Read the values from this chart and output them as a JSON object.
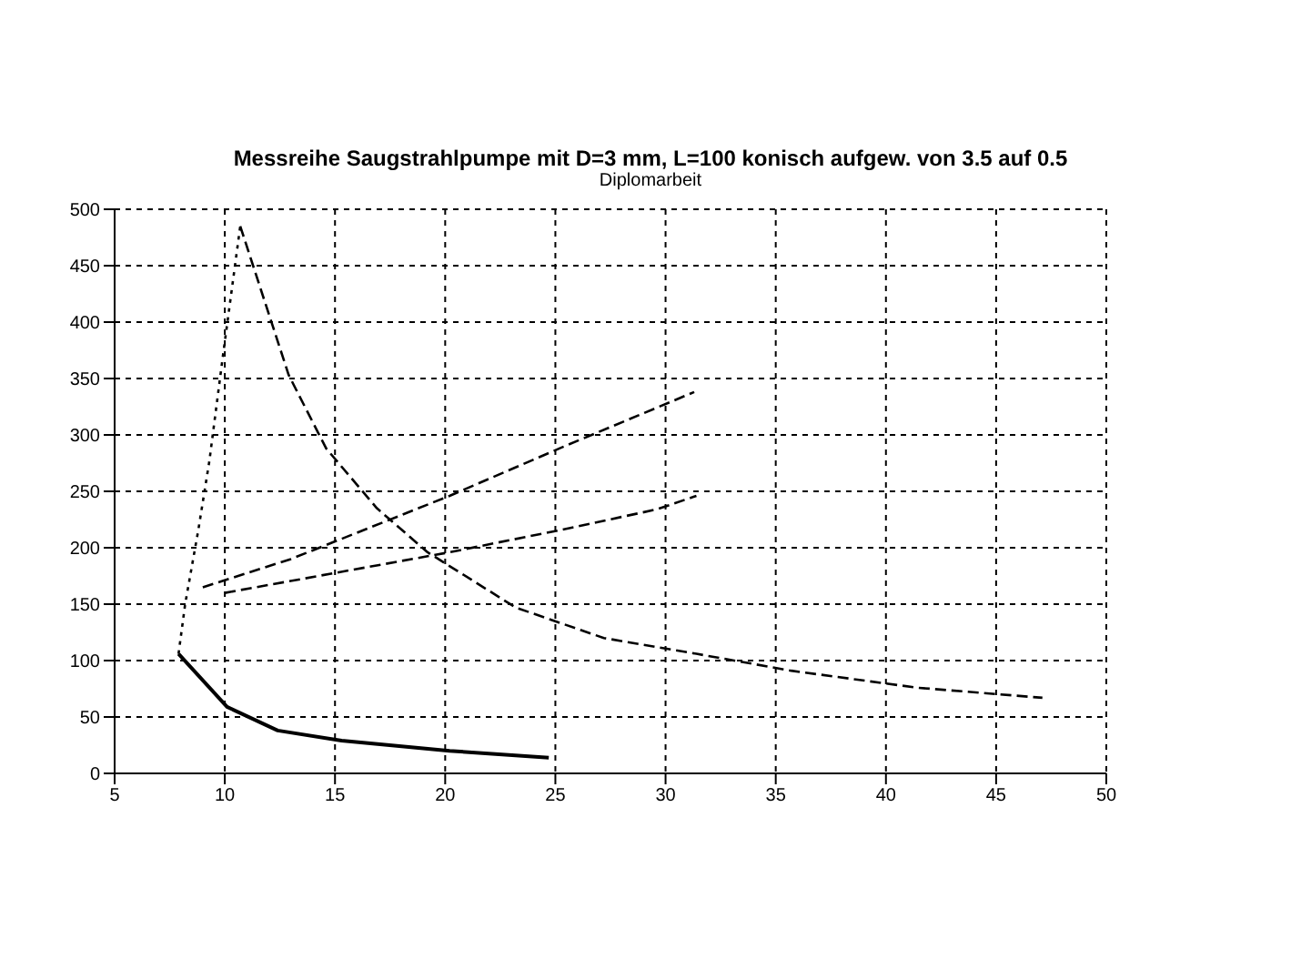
{
  "chart_data": {
    "type": "line",
    "title": "Messreihe Saugstrahlpumpe mit D=3 mm, L=100 konisch aufgew. von 3.5 auf 0.5",
    "subtitle": "Diplomarbeit",
    "xlim": [
      5,
      50
    ],
    "xticks": [
      5,
      10,
      15,
      20,
      25,
      30,
      35,
      40,
      45,
      50
    ],
    "ylim": [
      0,
      500
    ],
    "yticks": [
      0,
      50,
      100,
      150,
      200,
      250,
      300,
      350,
      400,
      450,
      500
    ],
    "grid": true,
    "marker": "none",
    "series": [
      {
        "color": "#000000",
        "line_style": "solid",
        "x": [
          7.9,
          10.1,
          12.4,
          15.3,
          20.2,
          24.7
        ],
        "values": [
          106,
          59,
          38,
          29,
          20,
          14
        ]
      },
      {
        "color": "#000000",
        "line_style": "dotted",
        "x": [
          7.9,
          8.2,
          8.8,
          9.3,
          9.9,
          10.7
        ],
        "values": [
          106,
          150,
          216,
          277,
          368,
          485
        ]
      },
      {
        "color": "#000000",
        "line_style": "dashed",
        "x": [
          10.7,
          12.9,
          14.6,
          16.9,
          19.2,
          23.2,
          27.2,
          31.4,
          35.7,
          41.4,
          47.1
        ],
        "values": [
          485,
          353,
          288,
          235,
          196,
          147,
          120,
          106,
          91,
          76,
          67
        ]
      },
      {
        "color": "#000000",
        "line_style": "dashed",
        "x": [
          9,
          13,
          20.2,
          25.3,
          31.3
        ],
        "values": [
          165,
          190,
          246,
          289,
          338
        ]
      },
      {
        "color": "#000000",
        "line_style": "dashed",
        "x": [
          10,
          20.2,
          25.3,
          29.6,
          31.4
        ],
        "values": [
          160,
          196,
          216,
          234,
          246
        ]
      }
    ]
  }
}
